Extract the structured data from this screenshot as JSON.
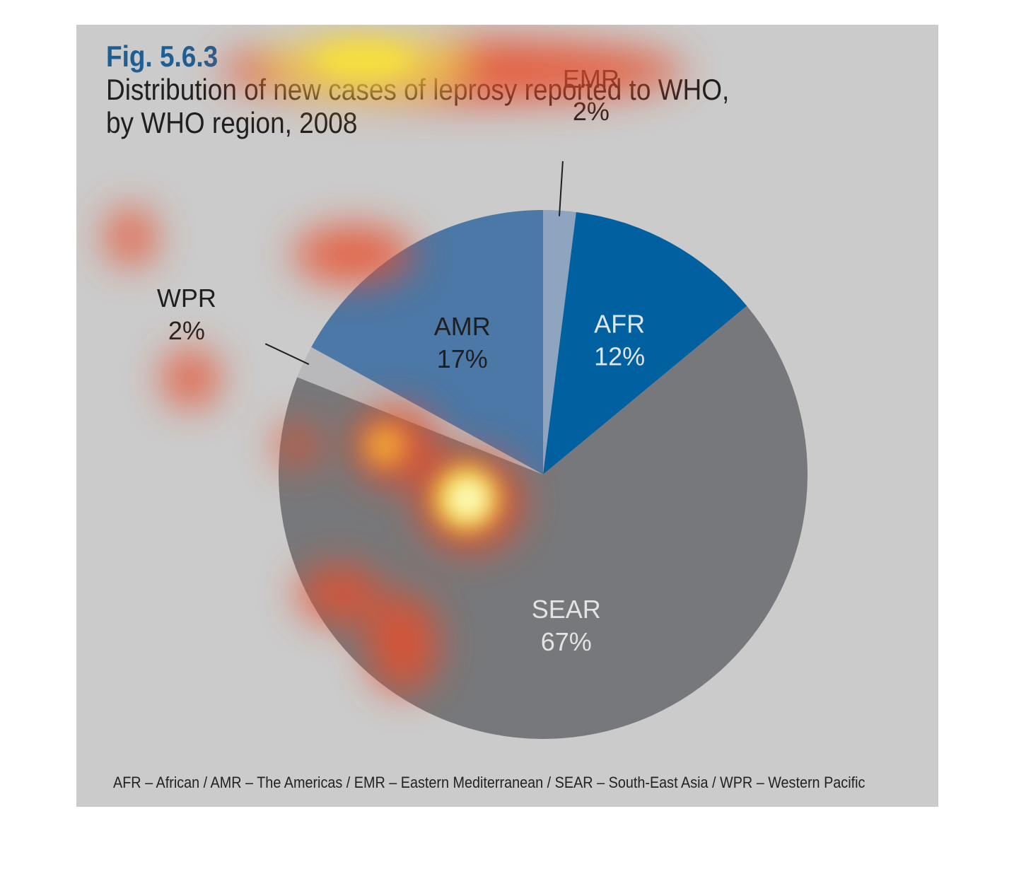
{
  "title": {
    "fig_number": "Fig. 5.6.3",
    "line1": "Distribution of new cases of leprosy reported to WHO,",
    "line2": "by WHO region, 2008"
  },
  "footnote": "AFR – African / AMR – The Americas / EMR – Eastern Mediterranean / SEAR – South-East Asia / WPR – Western Pacific",
  "chart_data": {
    "type": "pie",
    "title": "Distribution of new cases of leprosy reported to WHO, by WHO region, 2008",
    "slices": [
      {
        "label": "EMR",
        "value": 2,
        "value_label": "2%",
        "color": "#8ea4bf",
        "label_color": "#1f1f1f",
        "callout": true
      },
      {
        "label": "AFR",
        "value": 12,
        "value_label": "12%",
        "color": "#0160a0",
        "label_color": "#e1e6ee",
        "callout": false
      },
      {
        "label": "SEAR",
        "value": 67,
        "value_label": "67%",
        "color": "#77787b",
        "label_color": "#e3e3e3",
        "callout": false
      },
      {
        "label": "WPR",
        "value": 2,
        "value_label": "2%",
        "color": "#b9b9bb",
        "label_color": "#1f1f1f",
        "callout": true
      },
      {
        "label": "AMR",
        "value": 17,
        "value_label": "17%",
        "color": "#4b78a6",
        "label_color": "#1f1f1f",
        "callout": false
      }
    ],
    "legend": "none"
  },
  "colors": {
    "panel_background": "#cbcbcb",
    "fig_number": "#1d5f93",
    "heatmap_overlay": [
      "#ffffaa",
      "#f5e43a",
      "#e84e2a"
    ]
  }
}
